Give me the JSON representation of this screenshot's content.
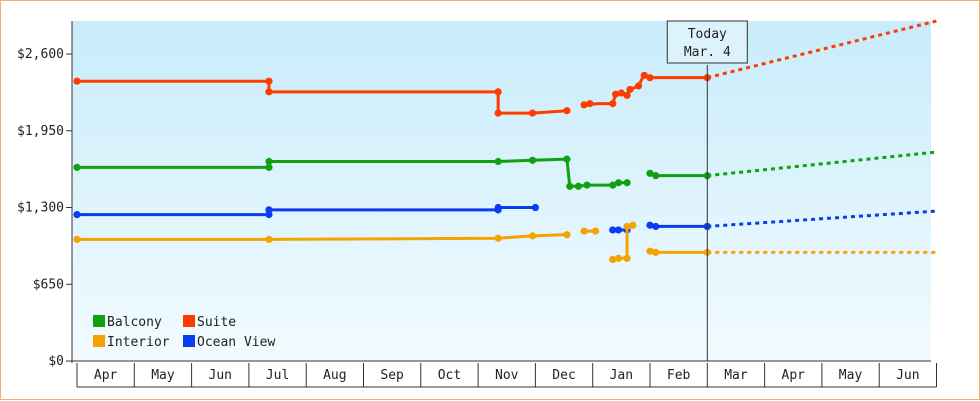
{
  "colors": {
    "Balcony": "#11a011",
    "Suite": "#ff3c00",
    "Interior": "#f5a300",
    "Ocean View": "#0a3cf0",
    "plot_top": "#c8ecfa",
    "plot_bottom": "#f2fbff"
  },
  "chart_data": {
    "type": "line",
    "title": "",
    "xlabel": "",
    "ylabel": "",
    "ylim": [
      0,
      2880
    ],
    "yticks": [
      "$0",
      "$650",
      "$1,300",
      "$1,950",
      "$2,600"
    ],
    "ytick_values": [
      0,
      650,
      1300,
      1950,
      2600
    ],
    "months": [
      "Apr",
      "May",
      "Jun",
      "Jul",
      "Aug",
      "Sep",
      "Oct",
      "Nov",
      "Dec",
      "Jan",
      "Feb",
      "Mar",
      "Apr",
      "May",
      "Jun"
    ],
    "today": {
      "label": "Today",
      "date": "Mar. 4",
      "x": 11.0
    },
    "legend": {
      "position": "bottom-left",
      "items": [
        "Balcony",
        "Suite",
        "Interior",
        "Ocean View"
      ]
    },
    "series": [
      {
        "name": "Suite",
        "segments": [
          [
            [
              0,
              2370
            ],
            [
              3.35,
              2370
            ],
            [
              3.35,
              2280
            ],
            [
              7.35,
              2280
            ],
            [
              7.35,
              2100
            ],
            [
              7.95,
              2100
            ],
            [
              8.55,
              2120
            ]
          ],
          [
            [
              8.85,
              2170
            ],
            [
              9.1,
              2180
            ],
            [
              9.35,
              2180
            ],
            [
              9.4,
              2260
            ],
            [
              9.5,
              2270
            ],
            [
              9.6,
              2250
            ],
            [
              9.65,
              2300
            ],
            [
              9.8,
              2330
            ],
            [
              9.85,
              2380
            ],
            [
              9.9,
              2420
            ],
            [
              9.95,
              2410
            ],
            [
              10.0,
              2400
            ],
            [
              11.0,
              2400
            ]
          ]
        ],
        "points": [
          [
            0,
            2370
          ],
          [
            3.35,
            2370
          ],
          [
            3.35,
            2280
          ],
          [
            7.35,
            2280
          ],
          [
            7.35,
            2100
          ],
          [
            7.95,
            2100
          ],
          [
            8.55,
            2120
          ],
          [
            8.85,
            2170
          ],
          [
            8.95,
            2180
          ],
          [
            9.35,
            2180
          ],
          [
            9.4,
            2260
          ],
          [
            9.5,
            2270
          ],
          [
            9.6,
            2250
          ],
          [
            9.65,
            2300
          ],
          [
            9.8,
            2330
          ],
          [
            9.9,
            2420
          ],
          [
            10.0,
            2400
          ],
          [
            11.0,
            2400
          ]
        ],
        "forecast": [
          [
            11.0,
            2400
          ],
          [
            15.0,
            2880
          ]
        ]
      },
      {
        "name": "Balcony",
        "segments": [
          [
            [
              0,
              1640
            ],
            [
              3.35,
              1640
            ],
            [
              3.35,
              1690
            ],
            [
              7.35,
              1690
            ],
            [
              7.95,
              1700
            ],
            [
              8.55,
              1710
            ],
            [
              8.6,
              1480
            ],
            [
              8.75,
              1480
            ],
            [
              8.9,
              1490
            ],
            [
              9.35,
              1490
            ],
            [
              9.45,
              1510
            ],
            [
              9.6,
              1510
            ]
          ],
          [
            [
              10.0,
              1590
            ],
            [
              10.1,
              1570
            ],
            [
              11.0,
              1570
            ]
          ]
        ],
        "points": [
          [
            0,
            1640
          ],
          [
            3.35,
            1640
          ],
          [
            3.35,
            1690
          ],
          [
            7.35,
            1690
          ],
          [
            7.95,
            1700
          ],
          [
            8.55,
            1710
          ],
          [
            8.6,
            1480
          ],
          [
            8.75,
            1480
          ],
          [
            8.9,
            1490
          ],
          [
            9.35,
            1490
          ],
          [
            9.45,
            1510
          ],
          [
            9.6,
            1510
          ],
          [
            10.0,
            1590
          ],
          [
            10.1,
            1570
          ],
          [
            11.0,
            1570
          ]
        ],
        "forecast": [
          [
            11.0,
            1570
          ],
          [
            15.0,
            1770
          ]
        ]
      },
      {
        "name": "Ocean View",
        "segments": [
          [
            [
              0,
              1240
            ],
            [
              3.35,
              1240
            ],
            [
              3.35,
              1280
            ],
            [
              7.35,
              1280
            ],
            [
              7.35,
              1300
            ],
            [
              8.0,
              1300
            ]
          ],
          [
            [
              9.35,
              1110
            ],
            [
              9.6,
              1110
            ]
          ],
          [
            [
              10.0,
              1150
            ],
            [
              10.1,
              1140
            ],
            [
              11.0,
              1140
            ]
          ]
        ],
        "points": [
          [
            0,
            1240
          ],
          [
            3.35,
            1240
          ],
          [
            3.35,
            1280
          ],
          [
            7.35,
            1280
          ],
          [
            7.35,
            1300
          ],
          [
            8.0,
            1300
          ],
          [
            9.35,
            1110
          ],
          [
            9.45,
            1110
          ],
          [
            9.6,
            1110
          ],
          [
            10.0,
            1150
          ],
          [
            10.1,
            1140
          ],
          [
            11.0,
            1140
          ]
        ],
        "forecast": [
          [
            11.0,
            1140
          ],
          [
            15.0,
            1270
          ]
        ]
      },
      {
        "name": "Interior",
        "segments": [
          [
            [
              0,
              1030
            ],
            [
              3.35,
              1030
            ],
            [
              7.35,
              1040
            ],
            [
              7.95,
              1060
            ],
            [
              8.55,
              1070
            ]
          ],
          [
            [
              8.85,
              1100
            ],
            [
              9.05,
              1100
            ]
          ],
          [
            [
              9.35,
              860
            ],
            [
              9.45,
              870
            ],
            [
              9.6,
              870
            ],
            [
              9.6,
              1140
            ],
            [
              9.7,
              1150
            ]
          ],
          [
            [
              10.0,
              930
            ],
            [
              10.1,
              920
            ],
            [
              11.0,
              920
            ]
          ]
        ],
        "points": [
          [
            0,
            1030
          ],
          [
            3.35,
            1030
          ],
          [
            7.35,
            1040
          ],
          [
            7.95,
            1060
          ],
          [
            8.55,
            1070
          ],
          [
            8.85,
            1100
          ],
          [
            9.05,
            1100
          ],
          [
            9.35,
            860
          ],
          [
            9.45,
            870
          ],
          [
            9.6,
            870
          ],
          [
            9.6,
            1140
          ],
          [
            9.7,
            1150
          ],
          [
            10.0,
            930
          ],
          [
            10.1,
            920
          ],
          [
            11.0,
            920
          ]
        ],
        "forecast": [
          [
            11.0,
            920
          ],
          [
            15.0,
            920
          ]
        ]
      }
    ]
  }
}
